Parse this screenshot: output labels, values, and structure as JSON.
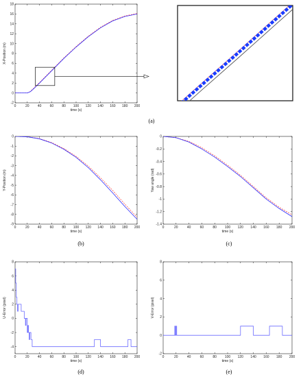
{
  "figure": {
    "captions": [
      "(a)",
      "(b)",
      "(c)",
      "(d)",
      "(e)"
    ]
  },
  "chart_data": [
    {
      "id": "a",
      "type": "line",
      "xlabel": "time (s)",
      "ylabel": "X-Position (m)",
      "xlim": [
        0,
        200
      ],
      "ylim": [
        -2,
        18
      ],
      "xticks": [
        0,
        20,
        40,
        60,
        80,
        100,
        120,
        140,
        160,
        180,
        200
      ],
      "yticks": [
        -2,
        0,
        2,
        4,
        6,
        8,
        10,
        12,
        14,
        16,
        18
      ],
      "grid": false,
      "series": [
        {
          "color": "#ff4d4d",
          "dash": "2,1.5",
          "x": [
            0,
            10,
            20,
            25,
            30,
            40,
            60,
            80,
            100,
            120,
            140,
            160,
            180,
            200
          ],
          "y": [
            0,
            0,
            0,
            0.3,
            0.9,
            2.1,
            4.6,
            7.1,
            9.4,
            11.5,
            13.3,
            14.7,
            15.6,
            16.1
          ]
        },
        {
          "color": "#2a2aff",
          "dash": "",
          "x": [
            0,
            10,
            20,
            25,
            30,
            40,
            60,
            80,
            100,
            120,
            140,
            160,
            180,
            200
          ],
          "y": [
            0,
            0,
            0,
            0.25,
            0.8,
            2.0,
            4.5,
            7.0,
            9.3,
            11.4,
            13.2,
            14.6,
            15.5,
            16.0
          ]
        }
      ],
      "zoom_box": {
        "x": [
          33,
          65
        ],
        "y": [
          1.5,
          5.2
        ]
      }
    },
    {
      "id": "a-zoom",
      "type": "line",
      "xlim": [
        33,
        65
      ],
      "ylim": [
        1.5,
        5.2
      ],
      "series": [
        {
          "color": "#ff4d4d",
          "dash": "2,1.5",
          "x": [
            33,
            40,
            50,
            60,
            65
          ],
          "y": [
            1.35,
            2.22,
            3.45,
            4.7,
            5.32
          ]
        },
        {
          "color": "#1a3cff",
          "dash": "5,2",
          "x": [
            33,
            40,
            50,
            60,
            65
          ],
          "y": [
            1.28,
            2.15,
            3.38,
            4.63,
            5.25
          ]
        },
        {
          "color": "#555555",
          "dash": "",
          "x": [
            33,
            40,
            50,
            60,
            65
          ],
          "y": [
            1.08,
            1.95,
            3.18,
            4.43,
            5.05
          ]
        }
      ]
    },
    {
      "id": "b",
      "type": "line",
      "xlabel": "time (s)",
      "ylabel": "Y-Position (m)",
      "xlim": [
        0,
        200
      ],
      "ylim": [
        -9,
        0
      ],
      "xticks": [
        0,
        20,
        40,
        60,
        80,
        100,
        120,
        140,
        160,
        180,
        200
      ],
      "yticks": [
        -9,
        -8,
        -7,
        -6,
        -5,
        -4,
        -3,
        -2,
        -1,
        0
      ],
      "grid": false,
      "series": [
        {
          "color": "#ff4d4d",
          "dash": "2,1.5",
          "x": [
            0,
            20,
            40,
            60,
            80,
            100,
            120,
            140,
            160,
            180,
            200
          ],
          "y": [
            0,
            -0.03,
            -0.22,
            -0.63,
            -1.25,
            -2.05,
            -3.05,
            -4.25,
            -5.55,
            -6.95,
            -8.3
          ]
        },
        {
          "color": "#2a2aff",
          "dash": "",
          "x": [
            0,
            20,
            40,
            60,
            80,
            100,
            120,
            140,
            160,
            180,
            200
          ],
          "y": [
            0,
            -0.04,
            -0.25,
            -0.68,
            -1.32,
            -2.15,
            -3.2,
            -4.45,
            -5.8,
            -7.2,
            -8.5
          ]
        }
      ]
    },
    {
      "id": "c",
      "type": "line",
      "xlabel": "time (s)",
      "ylabel": "Yaw angle (rad)",
      "xlim": [
        0,
        200
      ],
      "ylim": [
        -1.4,
        0
      ],
      "xticks": [
        0,
        20,
        40,
        60,
        80,
        100,
        120,
        140,
        160,
        180,
        200
      ],
      "yticks": [
        -1.4,
        -1.2,
        -1,
        -0.8,
        -0.6,
        -0.4,
        -0.2,
        0
      ],
      "grid": false,
      "series": [
        {
          "color": "#ff4d4d",
          "dash": "2,1.5",
          "x": [
            0,
            20,
            40,
            60,
            80,
            100,
            120,
            140,
            160,
            180,
            200
          ],
          "y": [
            0,
            -0.02,
            -0.08,
            -0.18,
            -0.31,
            -0.46,
            -0.62,
            -0.8,
            -0.98,
            -1.13,
            -1.25
          ]
        },
        {
          "color": "#2a2aff",
          "dash": "",
          "x": [
            0,
            20,
            40,
            60,
            80,
            100,
            120,
            140,
            160,
            180,
            200
          ],
          "y": [
            0,
            -0.02,
            -0.09,
            -0.2,
            -0.33,
            -0.48,
            -0.64,
            -0.82,
            -1.0,
            -1.15,
            -1.28
          ]
        }
      ]
    },
    {
      "id": "d",
      "type": "line",
      "xlabel": "time (s)",
      "ylabel": "U-Error (pixel)",
      "xlim": [
        0,
        200
      ],
      "ylim": [
        -5,
        8
      ],
      "xticks": [
        0,
        20,
        40,
        60,
        80,
        100,
        120,
        140,
        160,
        180,
        200
      ],
      "yticks": [
        -4,
        -2,
        0,
        2,
        4,
        6,
        8
      ],
      "grid": false,
      "series": [
        {
          "color": "#6a6aff",
          "dash": "",
          "x": [
            0,
            1,
            1,
            2,
            2,
            3,
            3,
            4,
            4,
            5,
            5,
            10,
            10,
            15,
            15,
            17,
            17,
            18,
            18,
            20,
            20,
            21,
            21,
            22,
            22,
            23,
            23,
            24,
            24,
            26,
            26,
            28,
            28,
            30,
            30,
            130,
            130,
            140,
            140,
            185,
            185,
            190,
            190,
            200
          ],
          "y": [
            7,
            7,
            5,
            5,
            3,
            3,
            2,
            2,
            1,
            1,
            2,
            2,
            1,
            1,
            0,
            0,
            -1,
            -1,
            0,
            0,
            -2,
            -2,
            -1,
            -1,
            -2,
            -2,
            -3,
            -3,
            -2,
            -2,
            -3,
            -3,
            -4,
            -4,
            -4,
            -4,
            -3,
            -3,
            -4,
            -4,
            -3,
            -3,
            -4,
            -4
          ]
        }
      ]
    },
    {
      "id": "e",
      "type": "line",
      "xlabel": "time (s)",
      "ylabel": "V-Error (pixel)",
      "xlim": [
        0,
        200
      ],
      "ylim": [
        -2,
        8
      ],
      "xticks": [
        0,
        20,
        40,
        60,
        80,
        100,
        120,
        140,
        160,
        180,
        200
      ],
      "yticks": [
        -2,
        0,
        2,
        4,
        6,
        8
      ],
      "grid": false,
      "series": [
        {
          "color": "#6a6aff",
          "dash": "",
          "x": [
            0,
            18,
            18,
            19,
            19,
            20,
            20,
            21,
            21,
            120,
            120,
            140,
            140,
            165,
            165,
            185,
            185,
            200
          ],
          "y": [
            0,
            0,
            1,
            1,
            0,
            0,
            1,
            1,
            0,
            0,
            1,
            1,
            0,
            0,
            1,
            1,
            0,
            0
          ]
        }
      ]
    }
  ]
}
